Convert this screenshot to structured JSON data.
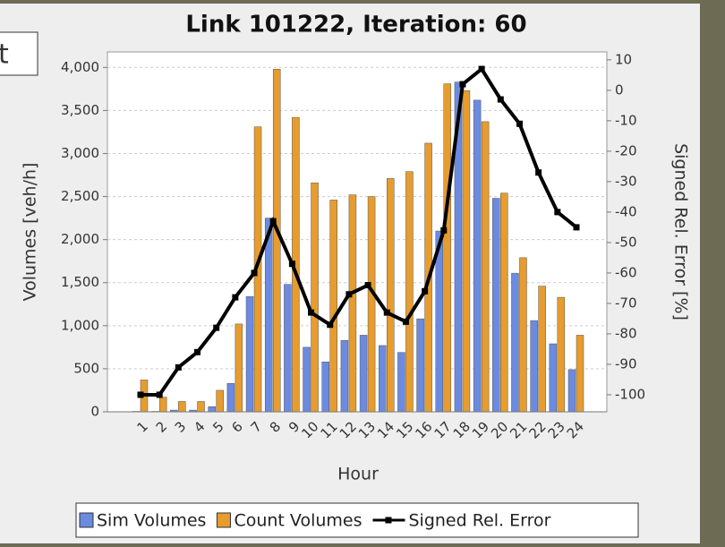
{
  "ui": {
    "fragment_label": "t"
  },
  "chart_data": {
    "type": "bar",
    "title": "Link 101222, Iteration: 60",
    "x_label": "Hour",
    "y_label": "Volumes [veh/h]",
    "y2_label": "Signed Rel. Error [%]",
    "categories": [
      "1",
      "2",
      "3",
      "4",
      "5",
      "6",
      "7",
      "8",
      "9",
      "10",
      "11",
      "12",
      "13",
      "14",
      "15",
      "16",
      "17",
      "18",
      "19",
      "20",
      "21",
      "22",
      "23",
      "24"
    ],
    "series": [
      {
        "name": "Sim Volumes",
        "color": "#6b8be0",
        "values": [
          5,
          5,
          20,
          20,
          60,
          330,
          1340,
          2250,
          1480,
          750,
          580,
          830,
          890,
          770,
          690,
          1080,
          2100,
          3830,
          3620,
          2480,
          1610,
          1060,
          790,
          490
        ]
      },
      {
        "name": "Count Volumes",
        "color": "#e69c2e",
        "values": [
          370,
          170,
          120,
          120,
          250,
          1020,
          3310,
          3980,
          3420,
          2660,
          2460,
          2520,
          2500,
          2710,
          2790,
          3120,
          3810,
          3730,
          3370,
          2540,
          1790,
          1460,
          1330,
          890
        ]
      },
      {
        "name": "Signed Rel. Error",
        "color": "#000000",
        "type": "line",
        "axis": "y2",
        "values": [
          -100,
          -100,
          -91,
          -86,
          -78,
          -68,
          -60,
          -43,
          -57,
          -73,
          -77,
          -67,
          -64,
          -73,
          -76,
          -66,
          -46,
          2,
          7,
          -3,
          -11,
          -27,
          -40,
          -45
        ]
      }
    ],
    "ylim": [
      0,
      4180
    ],
    "yticks": [
      0,
      500,
      {
        "value": 1000,
        "label": "1,000"
      },
      {
        "value": 1500,
        "label": "1,500"
      },
      {
        "value": 2000,
        "label": "2,000"
      },
      {
        "value": 2500,
        "label": "2,500"
      },
      {
        "value": 3000,
        "label": "3,000"
      },
      {
        "value": 3500,
        "label": "3,500"
      },
      {
        "value": 4000,
        "label": "4,000"
      }
    ],
    "y2lim": [
      -105.6,
      12.6
    ],
    "y2ticks": [
      -100,
      -90,
      -80,
      -70,
      -60,
      -50,
      -40,
      -30,
      -20,
      -10,
      0,
      10
    ],
    "grid": true,
    "legend": "bottom"
  }
}
